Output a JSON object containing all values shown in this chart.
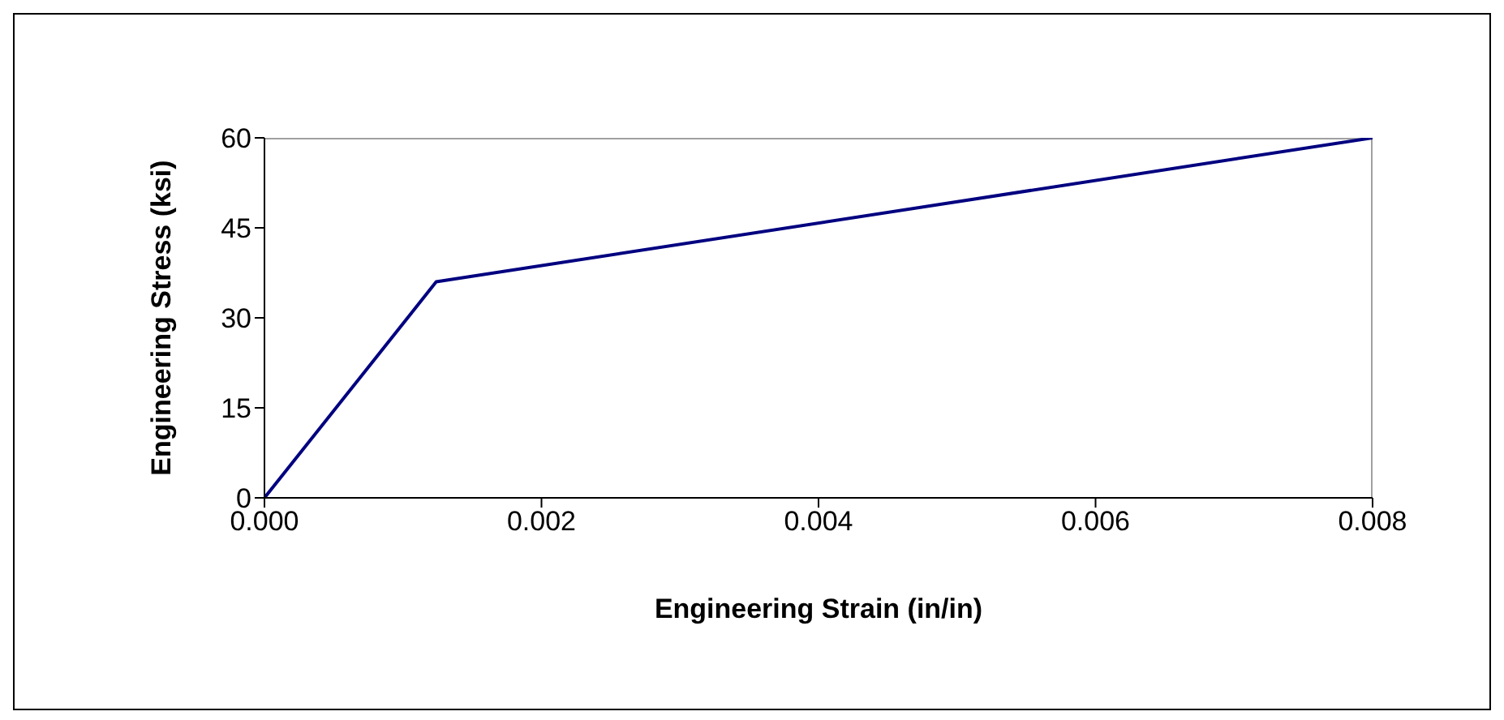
{
  "chart_data": {
    "type": "line",
    "xlabel": "Engineering Strain (in/in)",
    "ylabel": "Engineering Stress (ksi)",
    "x": [
      0,
      0.00124,
      0.008
    ],
    "series": [
      {
        "color": "#000080",
        "values": [
          0,
          36,
          60
        ]
      }
    ],
    "xlim": [
      0,
      0.008
    ],
    "xticks": [
      {
        "value": 0,
        "label": "0.000"
      },
      {
        "value": 0.002,
        "label": "0.002"
      },
      {
        "value": 0.004,
        "label": "0.004"
      },
      {
        "value": 0.006,
        "label": "0.006"
      },
      {
        "value": 0.008,
        "label": "0.008"
      }
    ],
    "ylim": [
      0,
      60
    ],
    "yticks": [
      0,
      15,
      30,
      45,
      60
    ],
    "grid": false,
    "legend": false,
    "marker": "none",
    "line_style": "solid"
  }
}
